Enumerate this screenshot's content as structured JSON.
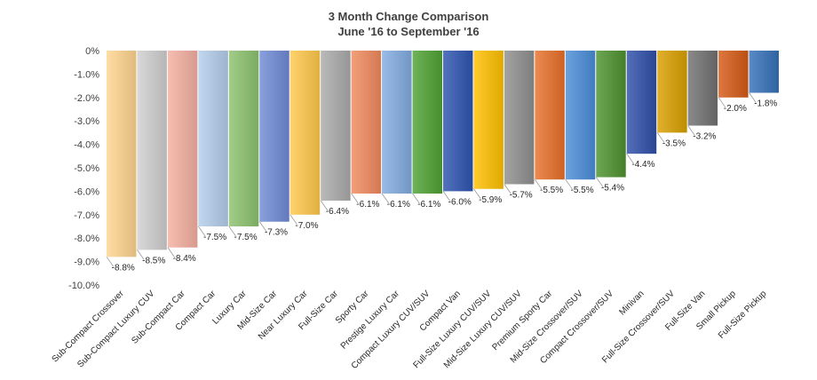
{
  "chart_data": {
    "type": "bar",
    "title": "3 Month Change Comparison",
    "subtitle": "June '16 to September '16",
    "ylim": [
      -10.0,
      0
    ],
    "yticks": [
      0,
      -1,
      -2,
      -3,
      -4,
      -5,
      -6,
      -7,
      -8,
      -9,
      -10
    ],
    "ytick_labels": [
      "0%",
      "-1.0%",
      "-2.0%",
      "-3.0%",
      "-4.0%",
      "-5.0%",
      "-6.0%",
      "-7.0%",
      "-8.0%",
      "-9.0%",
      "-10.0%"
    ],
    "grid": false,
    "legend": "none",
    "categories": [
      "Sub-Compact Crossover",
      "Sub-Compact Luxury CUV",
      "Sub-Compact Car",
      "Compact Car",
      "Luxury Car",
      "Mid-Size Car",
      "Near Luxury Car",
      "Full-Size Car",
      "Sporty Car",
      "Prestige Luxury Car",
      "Compact Luxury CUV/SUV",
      "Compact Van",
      "Full-Size Luxury CUV/SUV",
      "Mid-Size Luxury CUV/SUV",
      "Premium Sporty Car",
      "Mid-Size Crossover/SUV",
      "Compact Crossover/SUV",
      "Minivan",
      "Full-Size Crossover/SUV",
      "Full-Size Van",
      "Small Pickup",
      "Full-Size Pickup"
    ],
    "values": [
      -8.8,
      -8.5,
      -8.4,
      -7.5,
      -7.5,
      -7.3,
      -7.0,
      -6.4,
      -6.1,
      -6.1,
      -6.1,
      -6.0,
      -5.9,
      -5.7,
      -5.5,
      -5.5,
      -5.4,
      -4.4,
      -3.5,
      -3.2,
      -2.0,
      -1.8
    ],
    "data_labels": [
      "-8.8%",
      "-8.5%",
      "-8.4%",
      "-7.5%",
      "-7.5%",
      "-7.3%",
      "-7.0%",
      "-6.4%",
      "-6.1%",
      "-6.1%",
      "-6.1%",
      "-6.0%",
      "-5.9%",
      "-5.7%",
      "-5.5%",
      "-5.5%",
      "-5.4%",
      "-4.4%",
      "-3.5%",
      "-3.2%",
      "-2.0%",
      "-1.8%"
    ],
    "colors": [
      "#FFD58F",
      "#CFCFCF",
      "#F4B0A0",
      "#B4CDEB",
      "#8CC26E",
      "#6F8BD6",
      "#FFC84A",
      "#ABABAB",
      "#F08A5D",
      "#82ACE0",
      "#4FA233",
      "#2E54B0",
      "#FFC000",
      "#8F8F8F",
      "#E8702A",
      "#4A8DD8",
      "#4E922E",
      "#2F4FA8",
      "#D9A000",
      "#707070",
      "#D55A16",
      "#3470B8"
    ]
  }
}
